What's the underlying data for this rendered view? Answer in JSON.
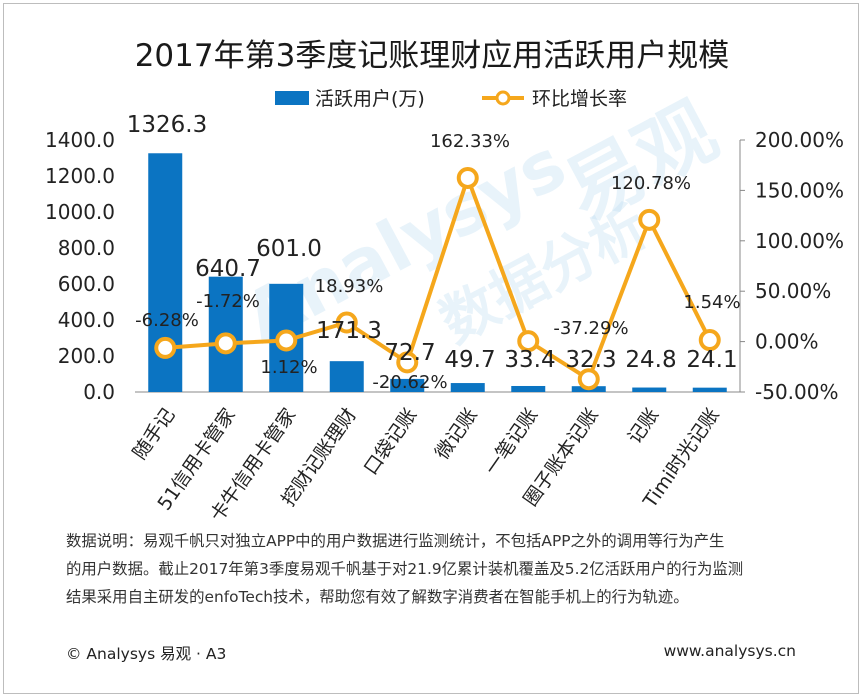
{
  "header": {
    "title": "2017年第3季度记账理财应用活跃用户规模"
  },
  "legend": {
    "bar_label": "活跃用户(万)",
    "line_label": "环比增长率"
  },
  "colors": {
    "bar": "#0b74c2",
    "line": "#f5a71c",
    "marker_fill": "#ffffff",
    "axis": "#888888"
  },
  "chart_data": {
    "type": "bar",
    "title": "2017年第3季度记账理财应用活跃用户规模",
    "categories": [
      "随手记",
      "51信用卡管家",
      "卡牛信用卡管家",
      "挖财记账理财",
      "口袋记账",
      "微记账",
      "一笔记账",
      "圈子账本记账",
      "记账",
      "Timi时光记账"
    ],
    "series": [
      {
        "name": "活跃用户(万)",
        "type": "bar",
        "axis": "left",
        "values": [
          1326.3,
          640.7,
          601.0,
          171.3,
          72.7,
          49.7,
          33.4,
          32.3,
          24.8,
          24.1
        ],
        "labels": [
          "1326.3",
          "640.7",
          "601.0",
          "171.3",
          "72.7",
          "49.7",
          "33.4",
          "32.3",
          "24.8",
          "24.1"
        ]
      },
      {
        "name": "环比增长率",
        "type": "line",
        "axis": "right",
        "values": [
          -6.28,
          -1.72,
          1.12,
          18.93,
          -20.62,
          162.33,
          0.5,
          -37.29,
          120.78,
          1.54
        ],
        "labels": [
          "-6.28%",
          "-1.72%",
          "1.12%",
          "18.93%",
          "-20.62%",
          "162.33%",
          "",
          "-37.29%",
          "120.78%",
          "1.54%"
        ]
      }
    ],
    "y_left": {
      "min": 0,
      "max": 1400,
      "ticks": [
        "0.0",
        "200.0",
        "400.0",
        "600.0",
        "800.0",
        "1000.0",
        "1200.0",
        "1400.0"
      ]
    },
    "y_right": {
      "min": -50,
      "max": 200,
      "ticks": [
        "-50.00%",
        "0.00%",
        "50.00%",
        "100.00%",
        "150.00%",
        "200.00%"
      ]
    },
    "grid": false,
    "legend_position": "top-center"
  },
  "note": {
    "lines": [
      "数据说明：易观千帆只对独立APP中的用户数据进行监测统计，不包括APP之外的调用等行为产生",
      "的用户数据。截止2017年第3季度易观千帆基于对21.9亿累计装机覆盖及5.2亿活跃用户的行为监测",
      "结果采用自主研发的enfoTech技术，帮助您有效了解数字消费者在智能手机上的行为轨迹。"
    ]
  },
  "footer": {
    "copyright": "© Analysys 易观 · A3",
    "website": "www.analysys.cn"
  },
  "watermark": {
    "en": "Analysys",
    "zh": "易观",
    "sub": "数据分析"
  }
}
